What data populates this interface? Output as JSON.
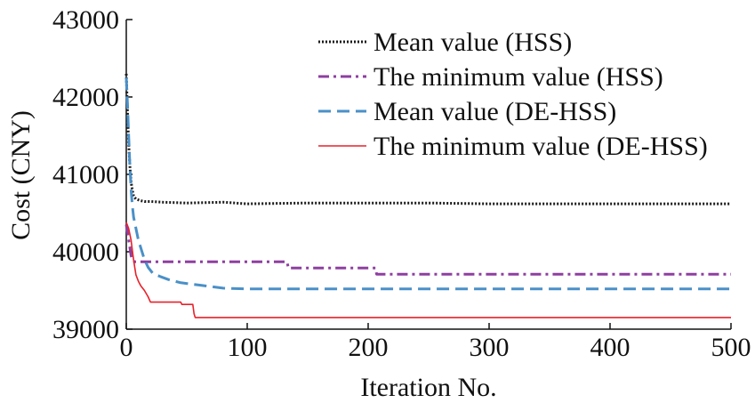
{
  "chart_data": {
    "type": "line",
    "xlabel": "Iteration No.",
    "ylabel": "Cost (CNY)",
    "xlim": [
      0,
      500
    ],
    "ylim": [
      39000,
      43000
    ],
    "xticks": [
      0,
      100,
      200,
      300,
      400,
      500
    ],
    "yticks": [
      39000,
      40000,
      41000,
      42000,
      43000
    ],
    "xtick_labels": [
      "0",
      "100",
      "200",
      "300",
      "400",
      "500"
    ],
    "ytick_labels": [
      "39000",
      "40000",
      "41000",
      "42000",
      "43000"
    ],
    "grid": false,
    "legend_position": "top-right",
    "series": [
      {
        "name": "Mean value (HSS)",
        "color": "#1a1a1a",
        "style": "dotted",
        "x": [
          0,
          1,
          2,
          3,
          4,
          5,
          6,
          7,
          8,
          10,
          12,
          15,
          20,
          30,
          50,
          80,
          100,
          150,
          200,
          250,
          300,
          350,
          400,
          450,
          500
        ],
        "y": [
          42300,
          41800,
          41400,
          41100,
          40900,
          40800,
          40720,
          40700,
          40680,
          40670,
          40660,
          40650,
          40650,
          40640,
          40630,
          40640,
          40620,
          40630,
          40630,
          40630,
          40620,
          40620,
          40620,
          40620,
          40620
        ]
      },
      {
        "name": "The minimum value (HSS)",
        "color": "#8e3fa0",
        "style": "dashdot",
        "x": [
          0,
          1,
          2,
          3,
          4,
          5,
          6,
          7,
          8,
          10,
          20,
          50,
          100,
          133,
          134,
          200,
          206,
          207,
          300,
          400,
          500
        ],
        "y": [
          40350,
          40250,
          40150,
          40050,
          39950,
          39900,
          39880,
          39870,
          39870,
          39870,
          39870,
          39870,
          39870,
          39870,
          39790,
          39790,
          39790,
          39710,
          39710,
          39710,
          39710
        ]
      },
      {
        "name": "Mean value (DE-HSS)",
        "color": "#4a90c8",
        "style": "dashed",
        "x": [
          0,
          1,
          2,
          3,
          4,
          5,
          6,
          8,
          10,
          12,
          15,
          18,
          22,
          28,
          35,
          45,
          60,
          80,
          100,
          150,
          200,
          250,
          300,
          350,
          400,
          450,
          500
        ],
        "y": [
          42250,
          41900,
          41500,
          41100,
          40800,
          40600,
          40450,
          40300,
          40150,
          40050,
          39900,
          39800,
          39720,
          39680,
          39640,
          39600,
          39570,
          39530,
          39520,
          39520,
          39520,
          39520,
          39520,
          39520,
          39520,
          39520,
          39520
        ]
      },
      {
        "name": "The minimum value (DE-HSS)",
        "color": "#e8212a",
        "style": "solid",
        "x": [
          0,
          2,
          4,
          5,
          6,
          7,
          8,
          10,
          12,
          15,
          18,
          20,
          25,
          30,
          45,
          46,
          55,
          56,
          57,
          58,
          60,
          100,
          200,
          300,
          400,
          500
        ],
        "y": [
          40380,
          40300,
          40150,
          40020,
          39900,
          39800,
          39700,
          39620,
          39560,
          39500,
          39420,
          39350,
          39350,
          39350,
          39350,
          39320,
          39320,
          39200,
          39150,
          39150,
          39150,
          39150,
          39150,
          39150,
          39150,
          39150
        ]
      }
    ]
  }
}
